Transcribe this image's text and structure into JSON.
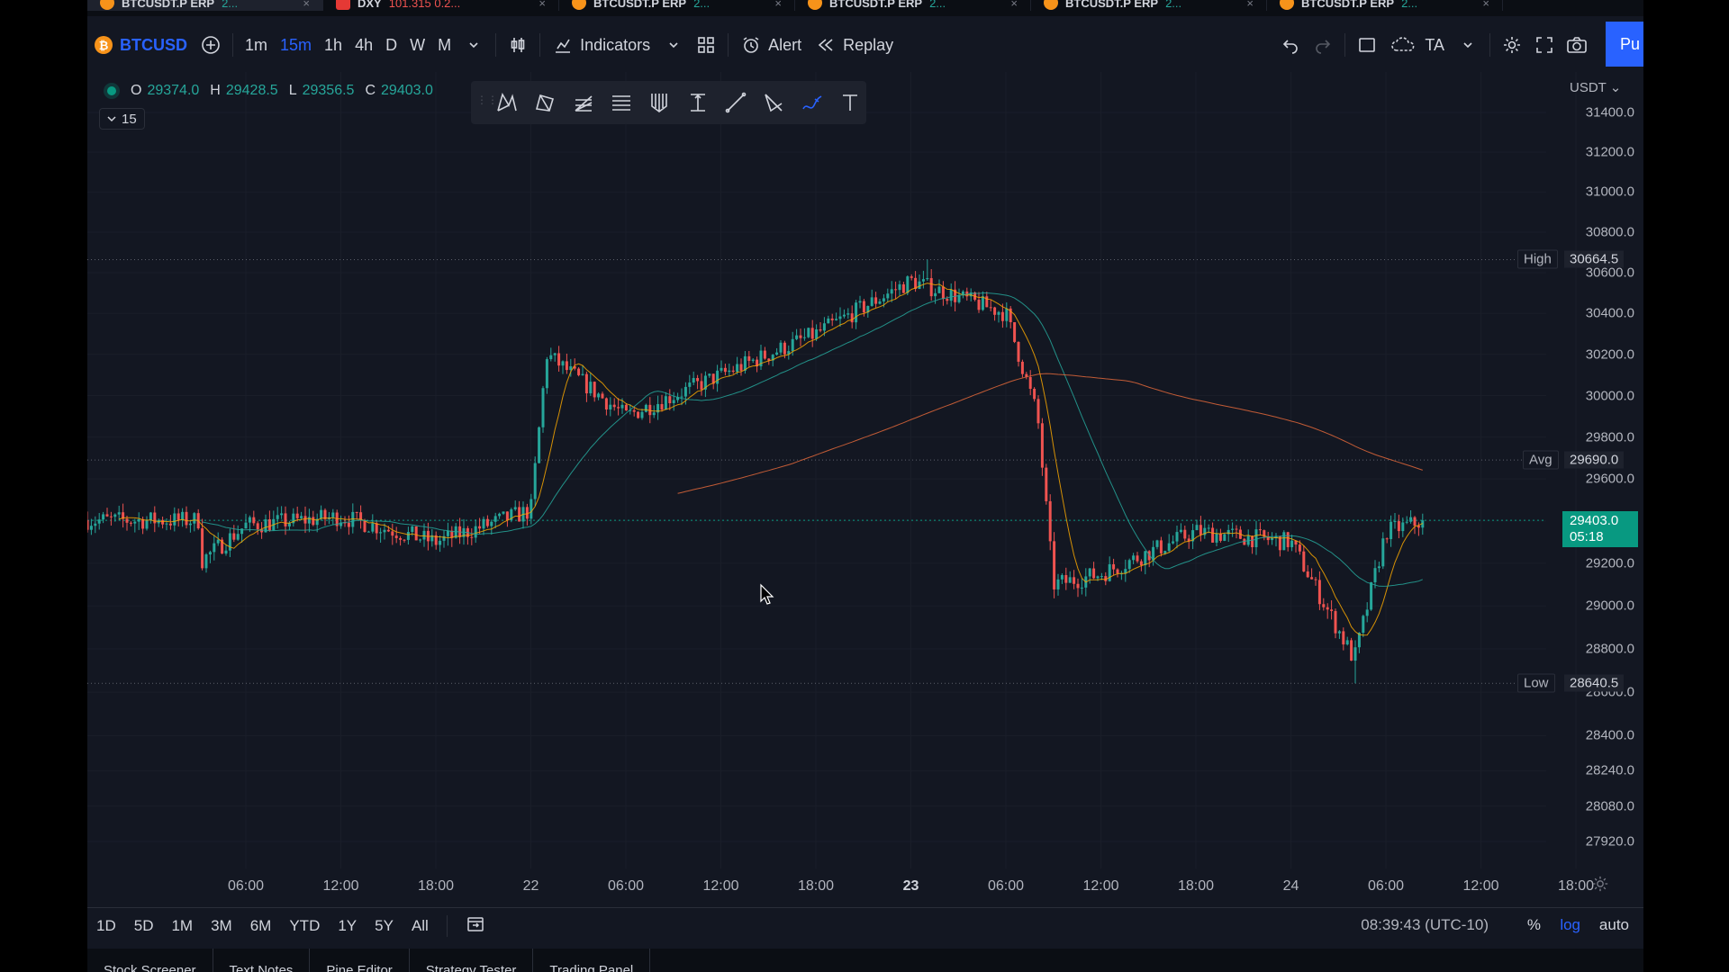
{
  "tabs": [
    {
      "name": "BTCUSDT.P ERP",
      "pct": "2...",
      "neg": false,
      "flag": false
    },
    {
      "name": "DXY",
      "pct": "101.315  0.2...",
      "neg": true,
      "flag": true
    },
    {
      "name": "BTCUSDT.P ERP",
      "pct": "2...",
      "neg": false,
      "flag": false
    },
    {
      "name": "BTCUSDT.P ERP",
      "pct": "2...",
      "neg": false,
      "flag": false
    },
    {
      "name": "BTCUSDT.P ERP",
      "pct": "2...",
      "neg": false,
      "flag": false
    },
    {
      "name": "BTCUSDT.P ERP",
      "pct": "2...",
      "neg": false,
      "flag": false
    }
  ],
  "toolbar": {
    "symbol": "BTCUSD",
    "symbol_glyph": "₿",
    "timeframes": [
      "1m",
      "15m",
      "1h",
      "4h",
      "D",
      "W",
      "M"
    ],
    "active_timeframe": "15m",
    "indicators_label": "Indicators",
    "alert_label": "Alert",
    "replay_label": "Replay",
    "ta_label": "TA",
    "publish_label": "Pu"
  },
  "legend": {
    "o_key": "O",
    "o_val": "29374.0",
    "h_key": "H",
    "h_val": "29428.5",
    "l_key": "L",
    "l_val": "29356.5",
    "c_key": "C",
    "c_val": "29403.0",
    "collapse_count": "15"
  },
  "price_axis": {
    "currency": "USDT",
    "ticks": [
      "31400.0",
      "31200.0",
      "31000.0",
      "30800.0",
      "30600.0",
      "30400.0",
      "30200.0",
      "30000.0",
      "29800.0",
      "29600.0",
      "29400.0",
      "29200.0",
      "29000.0",
      "28800.0",
      "28600.0",
      "28400.0",
      "28240.0",
      "28080.0",
      "27920.0"
    ],
    "high_key": "High",
    "high_val": "30664.5",
    "avg_key": "Avg",
    "avg_val": "29690.0",
    "low_key": "Low",
    "low_val": "28640.5",
    "last_price": "29403.0",
    "countdown": "05:18"
  },
  "time_axis": {
    "labels": [
      "06:00",
      "12:00",
      "18:00",
      "22",
      "06:00",
      "12:00",
      "18:00",
      "23",
      "06:00",
      "12:00",
      "18:00",
      "24",
      "06:00",
      "12:00",
      "18:00"
    ],
    "bold": [
      false,
      false,
      false,
      false,
      false,
      false,
      false,
      true,
      false,
      false,
      false,
      false,
      false,
      false,
      false
    ]
  },
  "range_bar": {
    "ranges": [
      "1D",
      "5D",
      "1M",
      "3M",
      "6M",
      "YTD",
      "1Y",
      "5Y",
      "All"
    ],
    "clock": "08:39:43 (UTC-10)",
    "percent_label": "%",
    "log_label": "log",
    "auto_label": "auto"
  },
  "bottom_panel": {
    "tabs": [
      "Stock Screener",
      "Text Notes",
      "Pine Editor",
      "Strategy Tester",
      "Trading Panel"
    ]
  },
  "colors": {
    "background": "#131722",
    "up": "#26a69a",
    "down": "#ef5350",
    "accent": "#2962ff",
    "ma_fast": "#f7a600",
    "ma_slow": "#26a69a",
    "ma_long": "#e0673a"
  },
  "chart_data": {
    "type": "candlestick",
    "series_label": "BTCUSD 15m",
    "key_points": [
      {
        "time": "21 03:00",
        "close": 29200
      },
      {
        "time": "21 06:00",
        "close": 29380
      },
      {
        "time": "21 12:00",
        "close": 29420
      },
      {
        "time": "21 18:00",
        "close": 29300
      },
      {
        "time": "22 00:00",
        "close": 29450
      },
      {
        "time": "22 01:00",
        "close": 30200
      },
      {
        "time": "22 06:00",
        "close": 29900
      },
      {
        "time": "22 12:00",
        "close": 30100
      },
      {
        "time": "22 18:00",
        "close": 30300
      },
      {
        "time": "23 00:00",
        "close": 30560
      },
      {
        "time": "23 06:00",
        "close": 30400
      },
      {
        "time": "23 08:00",
        "close": 29900
      },
      {
        "time": "23 09:00",
        "close": 29100
      },
      {
        "time": "23 12:00",
        "close": 29150
      },
      {
        "time": "23 18:00",
        "close": 29350
      },
      {
        "time": "24 00:00",
        "close": 29300
      },
      {
        "time": "24 04:00",
        "close": 28750
      },
      {
        "time": "24 06:00",
        "close": 29350
      },
      {
        "time": "24 08:30",
        "close": 29403
      }
    ],
    "high": 30664.5,
    "low": 28640.5,
    "avg": 29690.0,
    "ylim": [
      27850,
      31450
    ],
    "scale": "log"
  }
}
